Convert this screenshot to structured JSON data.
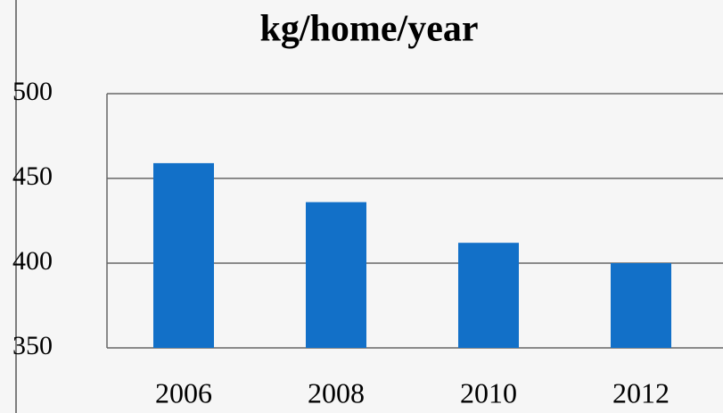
{
  "chart_data": {
    "type": "bar",
    "title": "kg/home/year",
    "categories": [
      "2006",
      "2008",
      "2010",
      "2012"
    ],
    "values": [
      459,
      436,
      412,
      400
    ],
    "color": "#1270c8",
    "ylim": [
      350,
      500
    ],
    "yticks": [
      350,
      400,
      450,
      500
    ],
    "grid": true
  }
}
